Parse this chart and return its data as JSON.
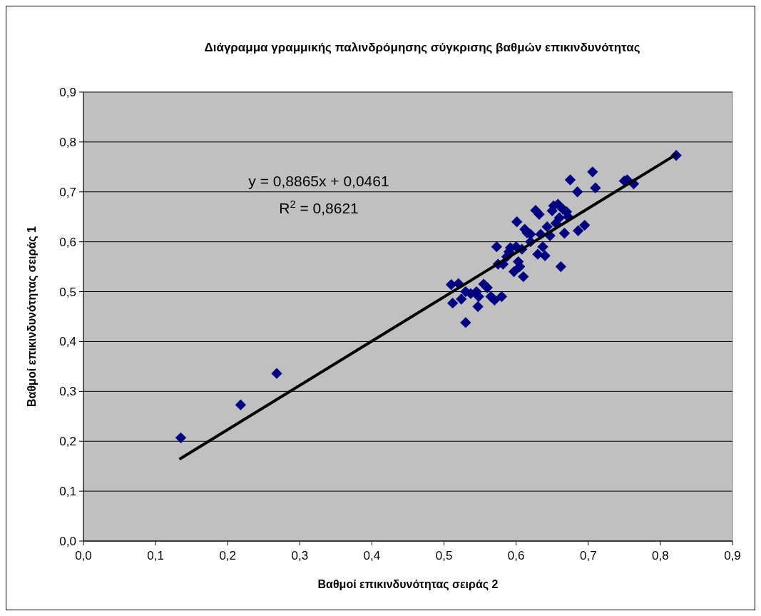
{
  "chart_data": {
    "type": "scatter",
    "title": "Διάγραμμα γραμμικής παλινδρόμησης σύγκρισης βαθμών επικινδυνότητας",
    "xlabel": "Βαθμοί επικινδυνότητας σειράς 2",
    "ylabel": "Βαθμοί επικινδυνότητας σειράς 1",
    "annotations": [
      "y = 0,8865x + 0,0461",
      "R$^{2}$ = 0,8621"
    ],
    "xlim": [
      0,
      0.9
    ],
    "ylim": [
      0,
      0.9
    ],
    "xticks": [
      {
        "value": 0,
        "label": "0,0"
      },
      {
        "value": 0.1,
        "label": "0,1"
      },
      {
        "value": 0.2,
        "label": "0,2"
      },
      {
        "value": 0.3,
        "label": "0,3"
      },
      {
        "value": 0.4,
        "label": "0,4"
      },
      {
        "value": 0.5,
        "label": "0,5"
      },
      {
        "value": 0.6,
        "label": "0,6"
      },
      {
        "value": 0.7,
        "label": "0,7"
      },
      {
        "value": 0.8,
        "label": "0,8"
      },
      {
        "value": 0.9,
        "label": "0,9"
      }
    ],
    "yticks": [
      {
        "value": 0,
        "label": "0,0"
      },
      {
        "value": 0.1,
        "label": "0,1"
      },
      {
        "value": 0.2,
        "label": "0,2"
      },
      {
        "value": 0.3,
        "label": "0,3"
      },
      {
        "value": 0.4,
        "label": "0,4"
      },
      {
        "value": 0.5,
        "label": "0,5"
      },
      {
        "value": 0.6,
        "label": "0,6"
      },
      {
        "value": 0.7,
        "label": "0,7"
      },
      {
        "value": 0.8,
        "label": "0,8"
      },
      {
        "value": 0.9,
        "label": "0,9"
      }
    ],
    "grid": "y",
    "marker": "diamond",
    "series": [
      {
        "color": "#000080",
        "x": [
          0.135,
          0.218,
          0.268,
          0.51,
          0.512,
          0.52,
          0.524,
          0.53,
          0.53,
          0.537,
          0.545,
          0.547,
          0.548,
          0.555,
          0.56,
          0.565,
          0.57,
          0.573,
          0.575,
          0.58,
          0.582,
          0.587,
          0.592,
          0.597,
          0.6,
          0.601,
          0.603,
          0.605,
          0.608,
          0.61,
          0.612,
          0.615,
          0.62,
          0.627,
          0.63,
          0.632,
          0.634,
          0.637,
          0.64,
          0.643,
          0.647,
          0.65,
          0.652,
          0.655,
          0.66,
          0.662,
          0.665,
          0.667,
          0.67,
          0.672,
          0.675,
          0.685,
          0.686,
          0.695,
          0.706,
          0.71,
          0.75,
          0.754,
          0.763,
          0.822,
          0.658,
          0.62,
          0.59
        ],
        "values": [
          0.207,
          0.273,
          0.336,
          0.514,
          0.477,
          0.516,
          0.485,
          0.438,
          0.5,
          0.496,
          0.5,
          0.47,
          0.49,
          0.515,
          0.508,
          0.49,
          0.483,
          0.59,
          0.555,
          0.49,
          0.555,
          0.57,
          0.588,
          0.54,
          0.59,
          0.64,
          0.56,
          0.55,
          0.585,
          0.53,
          0.625,
          0.618,
          0.6,
          0.663,
          0.575,
          0.655,
          0.615,
          0.59,
          0.572,
          0.63,
          0.612,
          0.662,
          0.672,
          0.637,
          0.648,
          0.55,
          0.665,
          0.617,
          0.66,
          0.65,
          0.724,
          0.7,
          0.622,
          0.633,
          0.74,
          0.708,
          0.722,
          0.724,
          0.716,
          0.773,
          0.675,
          0.615,
          0.58
        ]
      },
      {
        "type": "line",
        "color": "#000000",
        "line_style": "solid",
        "marker": "none",
        "x": [
          0.133,
          0.822
        ],
        "values": [
          0.164,
          0.775
        ]
      }
    ]
  }
}
